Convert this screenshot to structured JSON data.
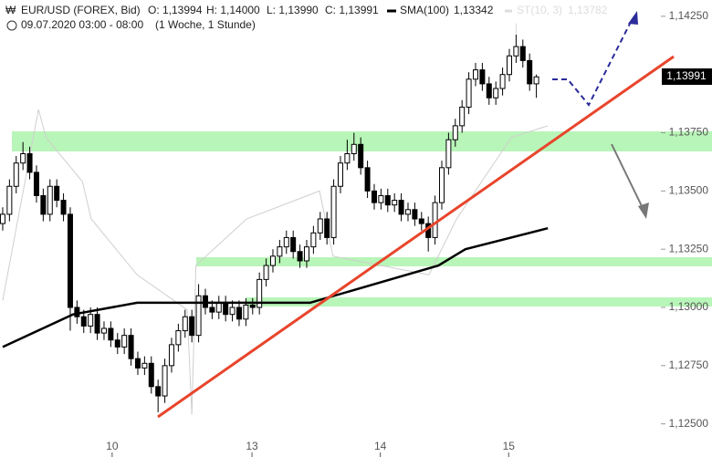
{
  "chart_data": {
    "type": "candlestick",
    "title": "EUR/USD (FOREX, Bid)",
    "subtitle": "09.07.2020 03:00 - 08:00",
    "period": "(1 Woche, 1 Stunde)",
    "ohlc_labels": [
      "O: 1,13994",
      "H: 1,14000",
      "L: 1,13990",
      "C: 1,13991"
    ],
    "up_color": "#ffffff",
    "down_color": "#000000",
    "open": [
      1.1336,
      1.134,
      1.1352,
      1.1362,
      1.1366,
      1.1358,
      1.1348,
      1.134,
      1.1352,
      1.1346,
      1.134,
      1.13,
      1.1296,
      1.1292,
      1.1297,
      1.1289,
      1.1291,
      1.1286,
      1.1283,
      1.1288,
      1.1278,
      1.1274,
      1.1276,
      1.1266,
      1.1262,
      1.1275,
      1.1284,
      1.129,
      1.1296,
      1.1288,
      1.1305,
      1.13,
      1.1298,
      1.1302,
      1.1297,
      1.13,
      1.1295,
      1.1301,
      1.13,
      1.1312,
      1.1318,
      1.1322,
      1.1326,
      1.133,
      1.1324,
      1.132,
      1.1326,
      1.1332,
      1.1338,
      1.133,
      1.1352,
      1.1362,
      1.1366,
      1.137,
      1.136,
      1.135,
      1.1345,
      1.1348,
      1.1344,
      1.1346,
      1.134,
      1.1342,
      1.1338,
      1.1336,
      1.133,
      1.1345,
      1.136,
      1.1372,
      1.1378,
      1.1386,
      1.1398,
      1.1402,
      1.1396,
      1.139,
      1.1394,
      1.14,
      1.1408,
      1.1412,
      1.1406,
      1.1396
    ],
    "high": [
      1.1343,
      1.1355,
      1.1365,
      1.1371,
      1.1369,
      1.1361,
      1.1351,
      1.1355,
      1.1355,
      1.1349,
      1.1343,
      1.1303,
      1.1299,
      1.13,
      1.13,
      1.1294,
      1.1294,
      1.1289,
      1.1291,
      1.1291,
      1.1281,
      1.1279,
      1.1279,
      1.1269,
      1.1278,
      1.1287,
      1.1293,
      1.1299,
      1.1299,
      1.131,
      1.1308,
      1.1303,
      1.1305,
      1.1305,
      1.1303,
      1.1303,
      1.1304,
      1.1304,
      1.1315,
      1.1321,
      1.1325,
      1.1329,
      1.1333,
      1.1333,
      1.1327,
      1.1329,
      1.1335,
      1.1341,
      1.1341,
      1.1355,
      1.1365,
      1.1372,
      1.1375,
      1.1373,
      1.1363,
      1.1353,
      1.1351,
      1.1351,
      1.1349,
      1.1349,
      1.1345,
      1.1345,
      1.1341,
      1.1339,
      1.1348,
      1.1363,
      1.1375,
      1.1381,
      1.1389,
      1.1401,
      1.1405,
      1.1405,
      1.1399,
      1.1397,
      1.1403,
      1.1411,
      1.1422,
      1.1415,
      1.1409,
      1.14
    ],
    "low": [
      1.1333,
      1.1337,
      1.1349,
      1.1359,
      1.1355,
      1.1345,
      1.1337,
      1.1337,
      1.1343,
      1.1337,
      1.129,
      1.1293,
      1.1289,
      1.1289,
      1.1286,
      1.1286,
      1.1283,
      1.128,
      1.128,
      1.1275,
      1.1271,
      1.1271,
      1.1263,
      1.1255,
      1.1259,
      1.1272,
      1.1281,
      1.1287,
      1.1285,
      1.1285,
      1.1297,
      1.1295,
      1.1295,
      1.1294,
      1.1294,
      1.1292,
      1.1292,
      1.1297,
      1.1297,
      1.1309,
      1.1315,
      1.1319,
      1.1323,
      1.1321,
      1.1317,
      1.1317,
      1.1323,
      1.1329,
      1.1327,
      1.1327,
      1.1349,
      1.1359,
      1.1363,
      1.1357,
      1.1347,
      1.1342,
      1.1342,
      1.1341,
      1.1341,
      1.1337,
      1.1337,
      1.1335,
      1.1333,
      1.1324,
      1.1327,
      1.1342,
      1.1357,
      1.1369,
      1.1375,
      1.1383,
      1.1395,
      1.1393,
      1.1387,
      1.1387,
      1.1391,
      1.1397,
      1.1405,
      1.1403,
      1.1393,
      1.139
    ],
    "close": [
      1.134,
      1.1352,
      1.1362,
      1.1366,
      1.1358,
      1.1348,
      1.134,
      1.1352,
      1.1346,
      1.134,
      1.13,
      1.1296,
      1.1292,
      1.1297,
      1.1289,
      1.1291,
      1.1286,
      1.1283,
      1.1288,
      1.1278,
      1.1274,
      1.1276,
      1.1266,
      1.1262,
      1.1275,
      1.1284,
      1.129,
      1.1296,
      1.1288,
      1.1305,
      1.13,
      1.1298,
      1.1302,
      1.1297,
      1.13,
      1.1295,
      1.1301,
      1.13,
      1.1312,
      1.1318,
      1.1322,
      1.1326,
      1.133,
      1.1324,
      1.132,
      1.1326,
      1.1332,
      1.1338,
      1.133,
      1.1352,
      1.1362,
      1.1366,
      1.137,
      1.136,
      1.135,
      1.1345,
      1.1348,
      1.1344,
      1.1346,
      1.134,
      1.1342,
      1.1338,
      1.1336,
      1.133,
      1.1345,
      1.136,
      1.1372,
      1.1378,
      1.1386,
      1.1398,
      1.1402,
      1.1396,
      1.139,
      1.1394,
      1.14,
      1.1408,
      1.1412,
      1.1406,
      1.1396,
      1.1399
    ],
    "series": [
      {
        "name": "SMA(100)",
        "value_label": "1,13342",
        "color": "#000000",
        "x": [
          0,
          10.4,
          19.9,
          45.5,
          64.5,
          68.5,
          80.7
        ],
        "values": [
          1.1283,
          1.1297,
          1.1302,
          1.1302,
          1.1318,
          1.1325,
          1.1334
        ]
      },
      {
        "name": "ST(10, 3)",
        "value_label": "1,13782",
        "color": "#cfcfcf",
        "x": [
          0,
          5.3,
          6.4,
          11.8,
          13.1,
          19.9,
          27.3,
          28,
          28.6,
          36.1,
          46.9,
          48.9,
          63.1,
          67.2,
          75.3,
          80.7
        ],
        "values": [
          1.1303,
          1.1385,
          1.1373,
          1.1354,
          1.1338,
          1.1314,
          1.1299,
          1.1254,
          1.1318,
          1.1338,
          1.135,
          1.1322,
          1.1314,
          1.1338,
          1.1373,
          1.1378
        ]
      }
    ],
    "last_label": {
      "value": 1.13991,
      "label": "1,13991"
    },
    "xlim": [
      -0.4,
      105
    ],
    "xticks": [
      {
        "value": 16.2,
        "label": "10"
      },
      {
        "value": 36.9,
        "label": "13"
      },
      {
        "value": 55.9,
        "label": "14"
      },
      {
        "value": 74.9,
        "label": "15"
      }
    ],
    "ylim": [
      1.1244,
      1.1432
    ],
    "yticks": [
      {
        "value": 1.1425,
        "label": "1,14250"
      },
      {
        "value": 1.1375,
        "label": "1,13750"
      },
      {
        "value": 1.135,
        "label": "1,13500"
      },
      {
        "value": 1.1325,
        "label": "1,13250"
      },
      {
        "value": 1.13,
        "label": "1,13000"
      },
      {
        "value": 1.1275,
        "label": "1,12750"
      },
      {
        "value": 1.125,
        "label": "1,12500"
      }
    ]
  }
}
